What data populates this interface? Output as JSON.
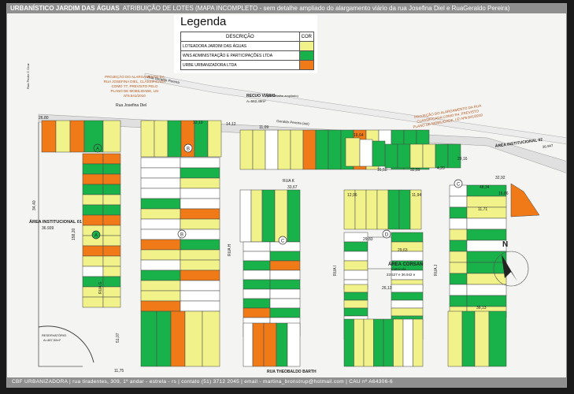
{
  "header": {
    "title": "URBANÍSTICO JARDIM DAS ÁGUAS",
    "subtitle": "ATRIBUIÇÃO DE LOTES (MAPA INCOMPLETO - sem detalhe ampliado do alargamento viário da rua Josefina Diel e RuaGeraldo Pereira)"
  },
  "legend": {
    "title": "Legenda",
    "col_desc": "DESCRIÇÃO",
    "col_cor": "COR",
    "items": [
      {
        "label": "LOTEADORA JARDIM DAS ÁGUAS",
        "color": "#f2f28a"
      },
      {
        "label": "WNS ADMINISTRAÇÃO E PARTICIPAÇÕES LTDA",
        "color": "#19b24a"
      },
      {
        "label": "URBE URBANIZADORA LTDA",
        "color": "#f07a18"
      }
    ]
  },
  "streets": {
    "rua_pedro_cruz": "Rua Pedro C Cruz",
    "rua_geraldo_pereira": "Rua Geraldo Pereira",
    "rua_josefina_diel": "Rua Josefina Diel",
    "geraldo_pereira_asi": "Geraldo Pereira (asi)",
    "rua_g": "RUA G",
    "rua_h": "RUA H",
    "rua_i": "RUA I",
    "rua_j": "RUA J",
    "rua_k": "RUA K",
    "rua_theobaldo": "RUA THEOBALDO BARTH"
  },
  "notes": {
    "proj_left": [
      "PROJEÇÃO DO ALARGAMENTO DA",
      "RUA JOSEFINA DIEL, CLASSIFICADA",
      "COMO T7, PREVISTO PELO",
      "PLANO DE MOBILIDADE, LEI",
      "Nº6.841/2010"
    ],
    "proj_right": [
      "PROJEÇÃO DO ALARGAMENTO DA RUA",
      "CLASSIFICADA COMO R4, PREVISTO",
      "PLANO DE MOBILIDADE, LEI Nº6.841/2010"
    ],
    "recuo": "RECUO VIÁRIO",
    "recuo_sub": "(ver detalhe ampliado)",
    "recuo_area": "A=562,49m²"
  },
  "areas": {
    "inst01": "ÁREA INSTITUCIONAL 01",
    "inst01_val": "36.939",
    "inst02": "ÁREA INSTITUCIONAL 02",
    "inst02_val": "36.947",
    "corsan": "ÁREA CORSAN",
    "corsan_sub": "matrícula",
    "corsan_val": "23.527 e 36.942 e",
    "reservatorio": "RESERVATÓRIO",
    "reservatorio_area": "A=487,52m²"
  },
  "blocks": {
    "A": "A",
    "B": "B",
    "C": "C",
    "D": "D"
  },
  "compass": "N",
  "dims": {
    "d1": "26.80",
    "d2": "12,10",
    "d3": "14,12",
    "d4": "11,09",
    "d5": "16,64",
    "d6": "16,50",
    "d7": "32,89",
    "d8": "29,16",
    "d9": "48,34",
    "d10": "16,86",
    "d11": "12,06",
    "d12": "11,94",
    "d13": "26,13",
    "d14": "33,67",
    "d15": "29,63",
    "d16": "158,20",
    "d17": "34,40",
    "d18": "51,07",
    "d19": "11,75",
    "d20": "4,20",
    "d21": "32,92",
    "d22": "11,71",
    "d23": "29,83",
    "d24": "36,13"
  },
  "footer": "CBF URBANIZADORA  |  rua tiradentes, 309, 1º andar - estrela - rs  |  contato (51) 3712 2045  |  email - martina_bronstrup@hotmail.com  |  CAU nº A64306-6"
}
